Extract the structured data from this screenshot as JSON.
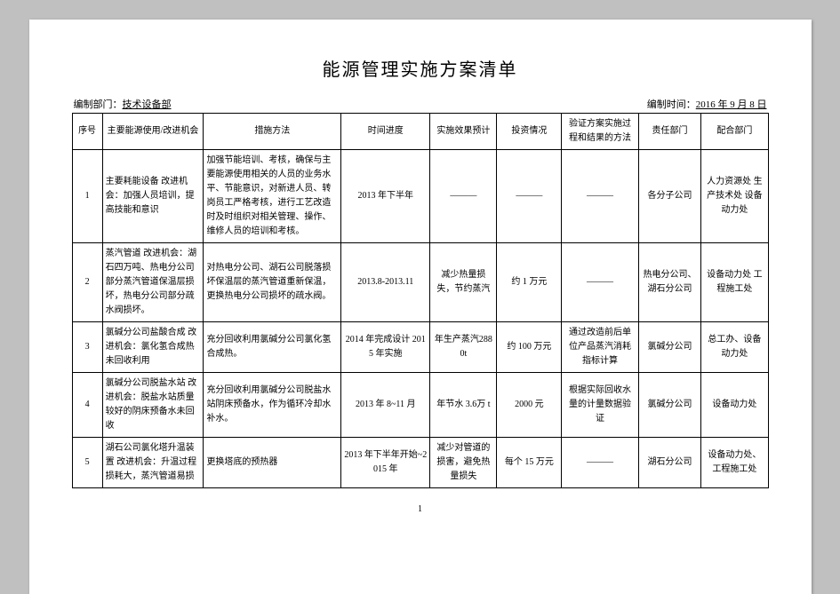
{
  "title": "能源管理实施方案清单",
  "meta": {
    "dept_label": "编制部门：",
    "dept_value": "技术设备部",
    "time_label": "编制时间：",
    "time_value": "2016 年 9 月 8 日"
  },
  "columns": [
    "序号",
    "主要能源使用/改进机会",
    "措施方法",
    "时间进度",
    "实施效果预计",
    "投资情况",
    "验证方案实施过程和结果的方法",
    "责任部门",
    "配合部门"
  ],
  "rows": [
    {
      "c0": "1",
      "c1": "主要耗能设备\n改进机会：加强人员培训，提高技能和意识",
      "c2": "加强节能培训、考核，确保与主要能源使用相关的人员的业务水平、节能意识，对新进人员、转岗员工严格考核，进行工艺改造时及时组织对相关管理、操作、维修人员的培训和考核。",
      "c3": "2013 年下半年",
      "c4": "———",
      "c5": "———",
      "c6": "———",
      "c7": "各分子公司",
      "c8": "人力资源处\n生产技术处\n设备动力处"
    },
    {
      "c0": "2",
      "c1": "蒸汽管道\n改进机会：湖石四万吨、热电分公司部分蒸汽管道保温层损坏，热电分公司部分疏水阀损坏。",
      "c2": "对热电分公司、湖石公司脱落损坏保温层的蒸汽管道重新保温，更换热电分公司损坏的疏水阀。",
      "c3": "2013.8-2013.11",
      "c4": "减少热量损失，节约蒸汽",
      "c5": "约 1 万元",
      "c6": "———",
      "c7": "热电分公司、湖石分公司",
      "c8": "设备动力处\n工程施工处"
    },
    {
      "c0": "3",
      "c1": "氯碱分公司盐酸合成\n改进机会：氯化氢合成热未回收利用",
      "c2": "充分回收利用氯碱分公司氯化氢合成热。",
      "c3": "2014 年完成设计\n2015 年实施",
      "c4": "年生产蒸汽2880t",
      "c5": "约 100 万元",
      "c6": "通过改造前后单位产品蒸汽消耗指标计算",
      "c7": "氯碱分公司",
      "c8": "总工办、设备动力处"
    },
    {
      "c0": "4",
      "c1": "氯碱分公司脱盐水站\n改进机会：脱盐水站质量较好的阴床预备水未回收",
      "c2": "充分回收利用氯碱分公司脱盐水站阴床预备水，作为循环冷却水补水。",
      "c3": "2013 年 8~11 月",
      "c4": "年节水 3.6万 t",
      "c5": "2000 元",
      "c6": "根据实际回收水量的计量数据验证",
      "c7": "氯碱分公司",
      "c8": "设备动力处"
    },
    {
      "c0": "5",
      "c1": "湖石公司氯化塔升温装置\n改进机会：升温过程损耗大，蒸汽管道易损",
      "c2": "更换塔底的预热器",
      "c3": "2013 年下半年开始~2015 年",
      "c4": "减少对管道的损害，避免热量损失",
      "c5": "每个 15 万元",
      "c6": "———",
      "c7": "湖石分公司",
      "c8": "设备动力处、工程施工处"
    }
  ],
  "page_number": "1"
}
